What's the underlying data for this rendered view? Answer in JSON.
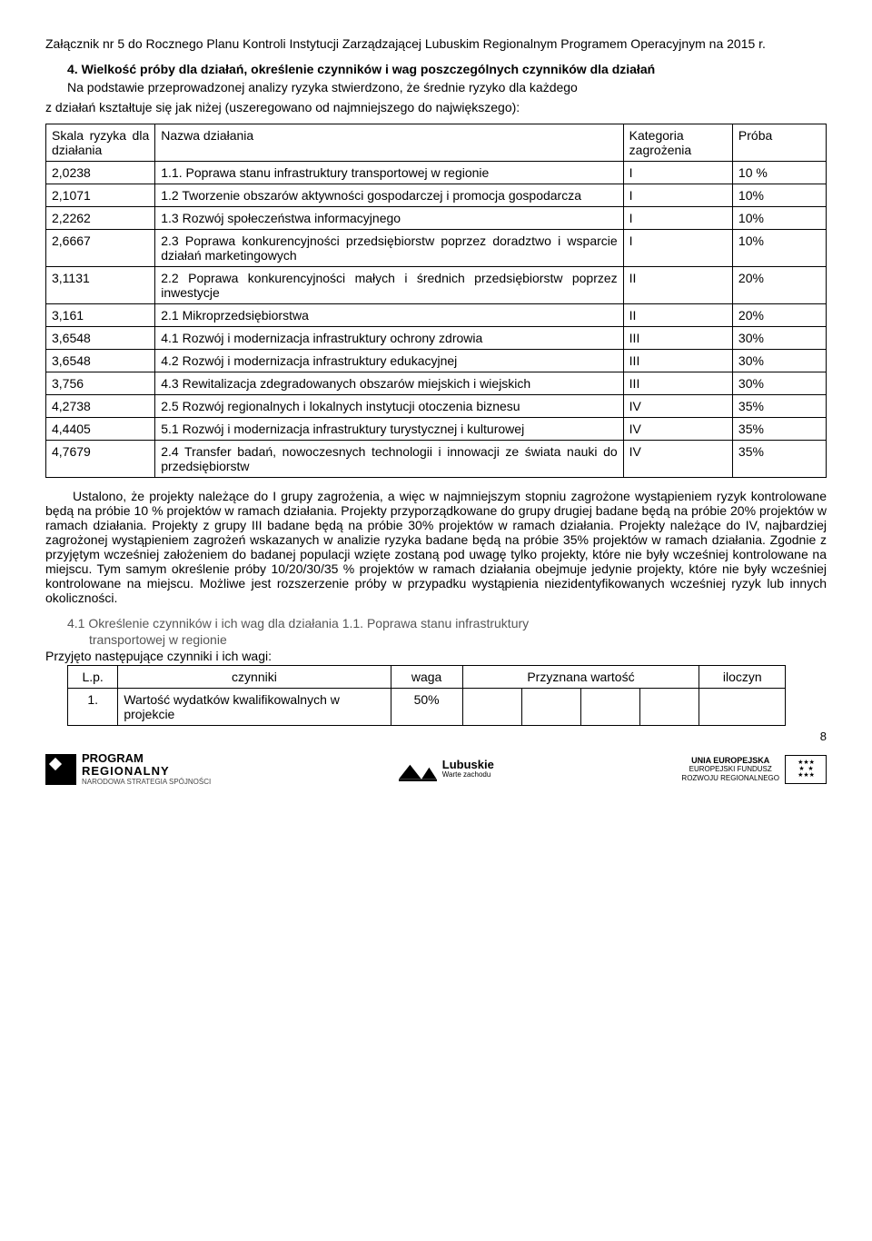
{
  "title": "Załącznik nr 5 do Rocznego Planu Kontroli Instytucji Zarządzającej Lubuskim Regionalnym Programem Operacyjnym na 2015 r.",
  "section4": {
    "heading": "4. Wielkość próby dla działań, określenie czynników i wag poszczególnych czynników dla działań",
    "intro1": "Na podstawie przeprowadzonej analizy ryzyka stwierdzono, że średnie ryzyko dla każdego",
    "intro2": "z działań kształtuje się jak niżej (uszeregowano od najmniejszego do największego):"
  },
  "table": {
    "headers": {
      "c1": "Skala ryzyka dla działania",
      "c2": "Nazwa działania",
      "c3": "Kategoria zagrożenia",
      "c4": "Próba"
    },
    "rows": [
      {
        "r": "2,0238",
        "n": "1.1. Poprawa stanu infrastruktury transportowej w regionie",
        "k": "I",
        "p": "10 %"
      },
      {
        "r": "2,1071",
        "n": "1.2 Tworzenie obszarów aktywności gospodarczej i promocja gospodarcza",
        "k": "I",
        "p": "10%"
      },
      {
        "r": "2,2262",
        "n": "1.3 Rozwój społeczeństwa informacyjnego",
        "k": "I",
        "p": "10%"
      },
      {
        "r": "2,6667",
        "n": "2.3 Poprawa konkurencyjności przedsiębiorstw poprzez doradztwo i wsparcie działań marketingowych",
        "k": "I",
        "p": "10%"
      },
      {
        "r": "3,1131",
        "n": "2.2 Poprawa konkurencyjności małych i średnich przedsiębiorstw poprzez inwestycje",
        "k": "II",
        "p": "20%"
      },
      {
        "r": "3,161",
        "n": "2.1 Mikroprzedsiębiorstwa",
        "k": "II",
        "p": "20%"
      },
      {
        "r": "3,6548",
        "n": "4.1 Rozwój i modernizacja infrastruktury ochrony zdrowia",
        "k": "III",
        "p": "30%"
      },
      {
        "r": "3,6548",
        "n": "4.2 Rozwój i modernizacja infrastruktury edukacyjnej",
        "k": "III",
        "p": "30%"
      },
      {
        "r": "3,756",
        "n": "4.3 Rewitalizacja zdegradowanych obszarów miejskich i wiejskich",
        "k": "III",
        "p": "30%"
      },
      {
        "r": "4,2738",
        "n": "2.5 Rozwój regionalnych i lokalnych instytucji otoczenia biznesu",
        "k": "IV",
        "p": "35%"
      },
      {
        "r": "4,4405",
        "n": "5.1 Rozwój i modernizacja infrastruktury turystycznej i kulturowej",
        "k": "IV",
        "p": "35%"
      },
      {
        "r": "4,7679",
        "n": "2.4 Transfer badań, nowoczesnych technologii i innowacji ze świata nauki do przedsiębiorstw",
        "k": "IV",
        "p": "35%"
      }
    ]
  },
  "body_para": "Ustalono, że projekty należące do I grupy zagrożenia, a więc w najmniejszym stopniu zagrożone wystąpieniem ryzyk kontrolowane będą na próbie 10 % projektów w ramach działania. Projekty przyporządkowane do grupy drugiej badane będą na próbie 20% projektów w ramach działania. Projekty z grupy III badane będą na próbie 30% projektów w ramach działania. Projekty należące do IV, najbardziej zagrożonej wystąpieniem zagrożeń wskazanych w analizie ryzyka badane będą na próbie 35% projektów w ramach działania. Zgodnie z przyjętym wcześniej założeniem do badanej populacji wzięte zostaną pod uwagę tylko projekty, które nie były wcześniej kontrolowane na miejscu. Tym samym określenie próby 10/20/30/35 % projektów w ramach działania obejmuje jedynie projekty, które nie były wcześniej kontrolowane na miejscu. Możliwe jest rozszerzenie próby w przypadku wystąpienia niezidentyfikowanych wcześniej ryzyk lub innych okoliczności.",
  "sub41_line1": "4.1 Określenie czynników i ich wag dla działania 1.1. Poprawa stanu infrastruktury",
  "sub41_line2": "transportowej w regionie",
  "factors_intro": "Przyjęto następujące czynniki i ich wagi:",
  "factors_table": {
    "headers": {
      "lp": "L.p.",
      "cz": "czynniki",
      "waga": "waga",
      "pw": "Przyznana wartość",
      "il": "iloczyn"
    },
    "row1": {
      "lp": "1.",
      "cz": "Wartość wydatków kwalifikowalnych w projekcie",
      "waga": "50%"
    }
  },
  "page_num": "8",
  "footer": {
    "program": {
      "l1": "PROGRAM",
      "l2": "REGIONALNY",
      "l3": "NARODOWA STRATEGIA SPÓJNOŚCI"
    },
    "lubuskie": {
      "l1": "Lubuskie",
      "l2": "Warte zachodu"
    },
    "eu": {
      "l1": "UNIA EUROPEJSKA",
      "l2": "EUROPEJSKI FUNDUSZ",
      "l3": "ROZWOJU REGIONALNEGO"
    }
  }
}
